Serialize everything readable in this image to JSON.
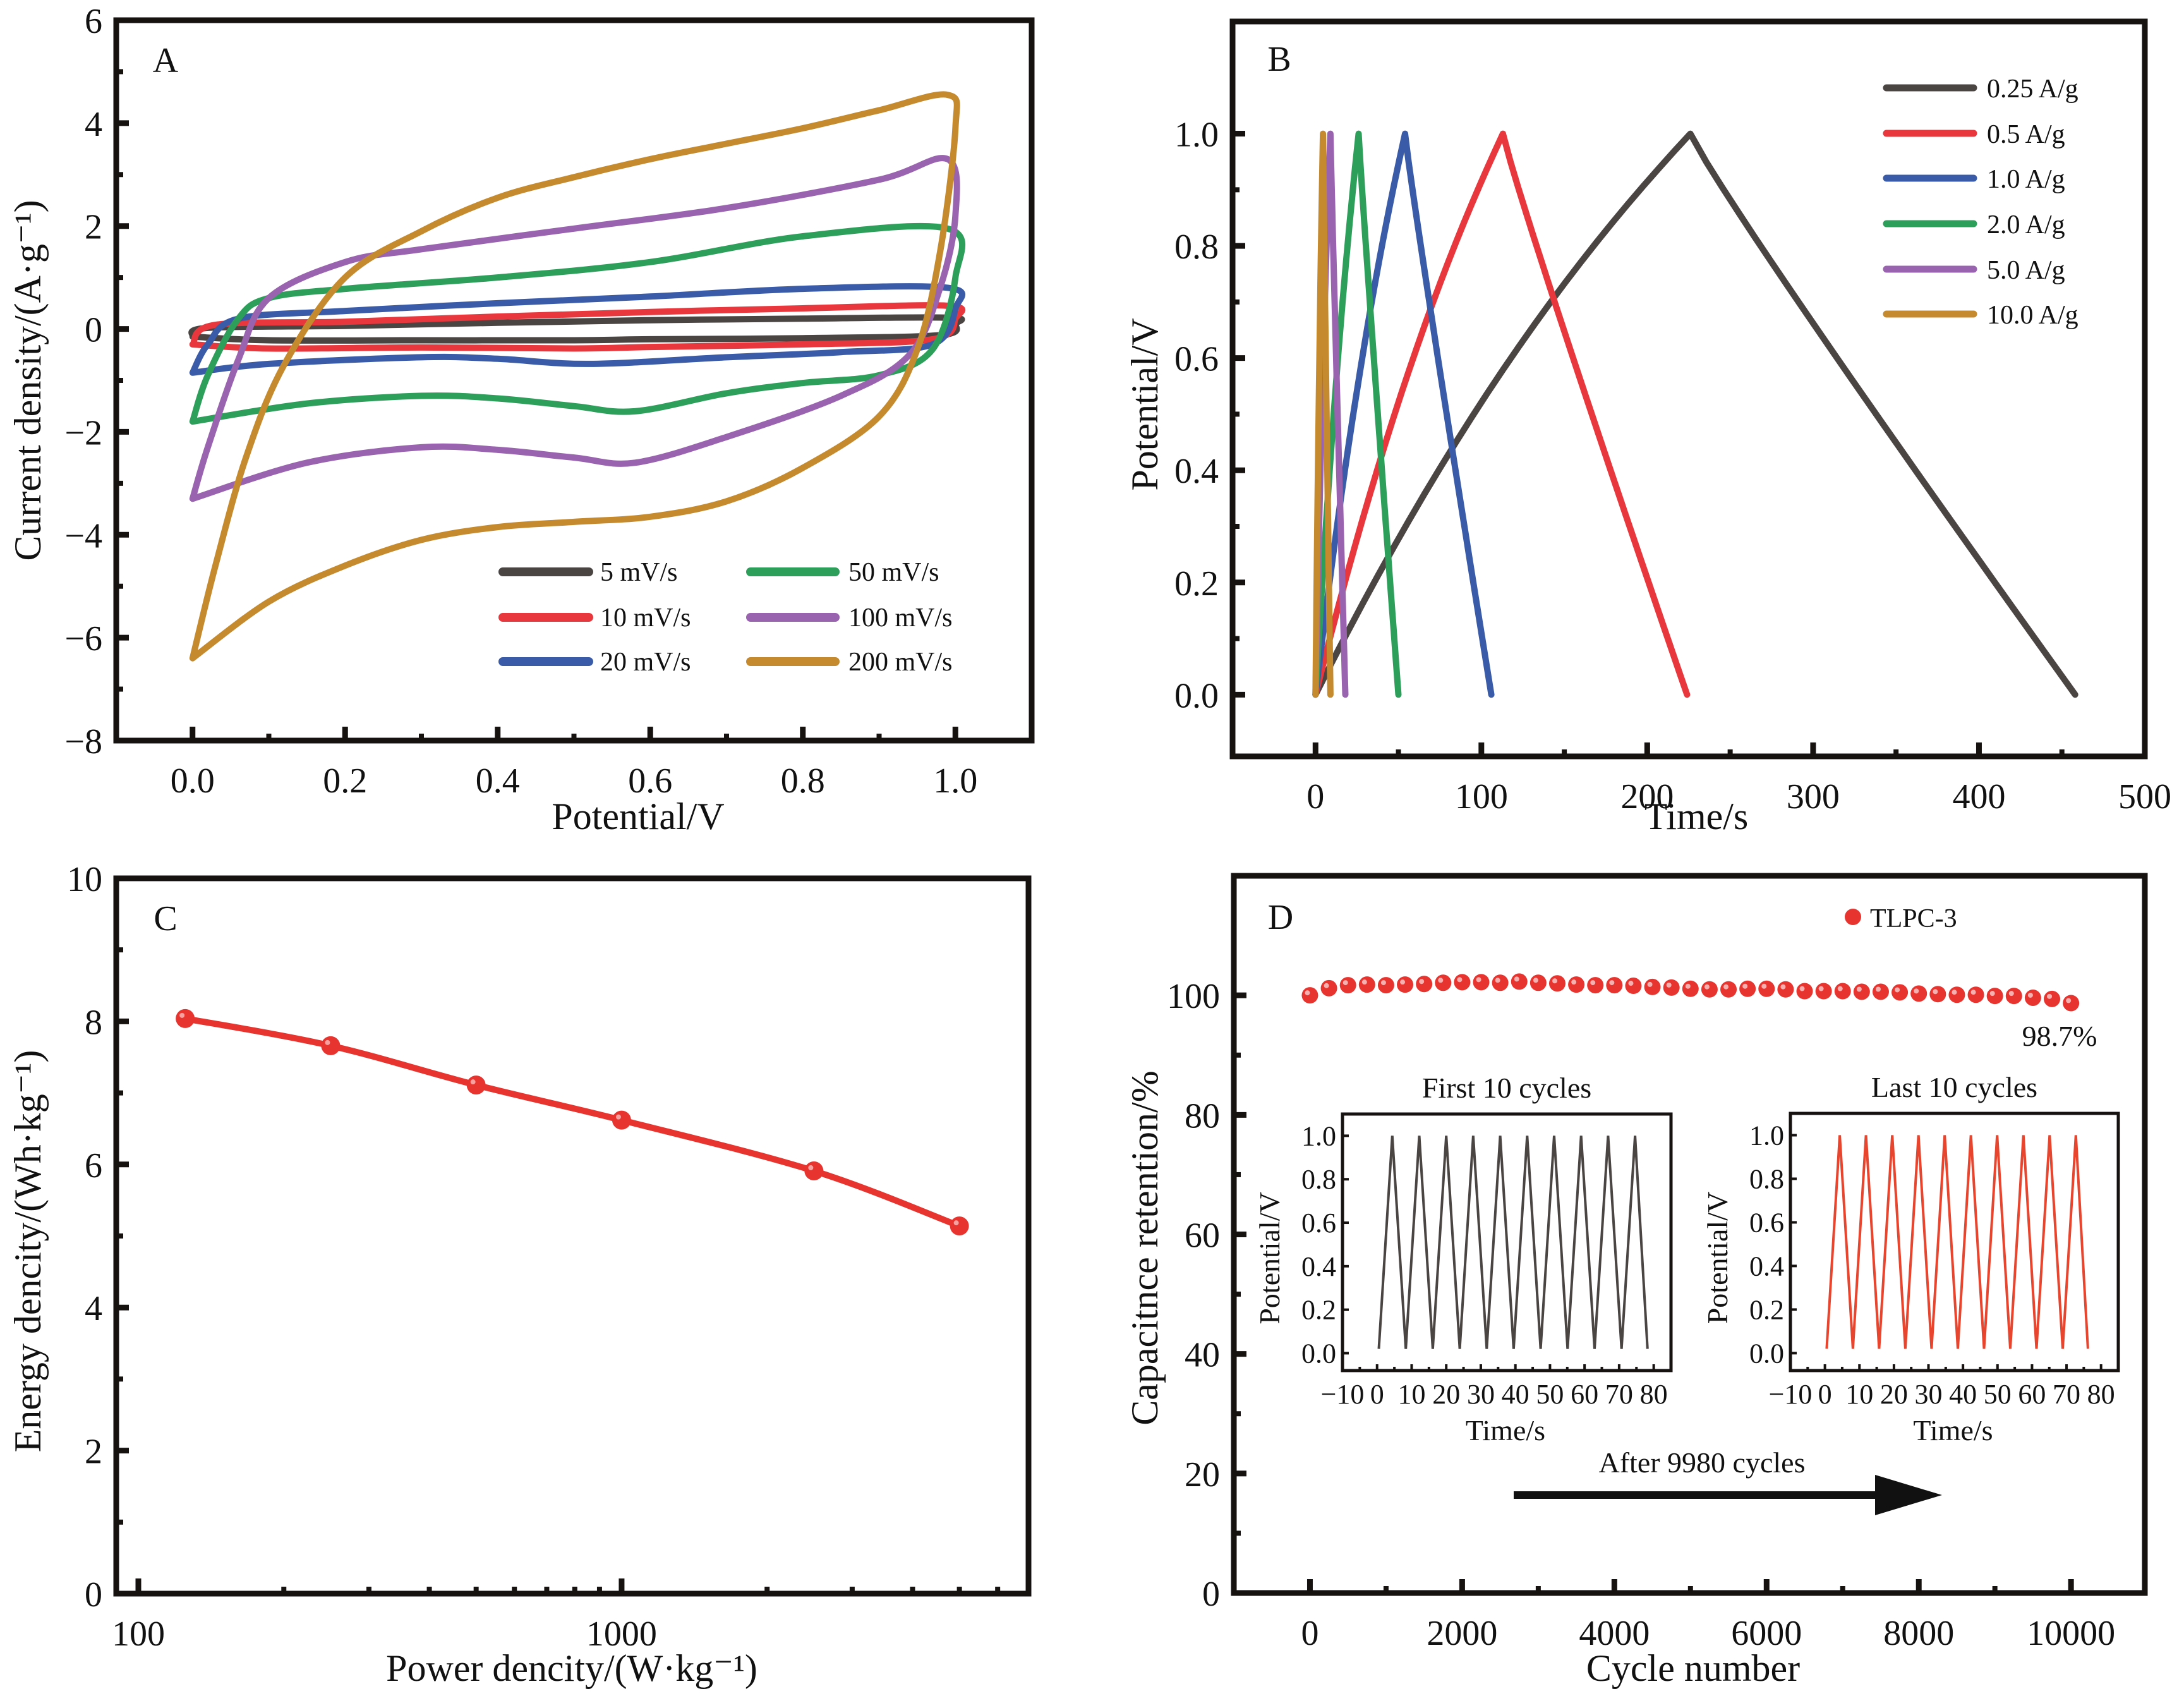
{
  "figure": {
    "panels": [
      "A",
      "B",
      "C",
      "D"
    ]
  },
  "chart_data": [
    {
      "id": "A",
      "type": "line",
      "panel_label": "A",
      "title": "",
      "xlabel": "Potential/V",
      "ylabel": "Current density/(A·g⁻¹)",
      "xlim": [
        -0.1,
        1.1
      ],
      "ylim": [
        -8,
        6
      ],
      "xticks": [
        0.0,
        0.2,
        0.4,
        0.6,
        0.8,
        1.0
      ],
      "xtick_labels": [
        "0.0",
        "0.2",
        "0.4",
        "0.6",
        "0.8",
        "1.0"
      ],
      "yticks": [
        -8,
        -6,
        -4,
        -2,
        0,
        2,
        4,
        6
      ],
      "ytick_labels": [
        "−8",
        "−6",
        "−4",
        "−2",
        "0",
        "2",
        "4",
        "6"
      ],
      "legend_position": "bottom-right",
      "series": [
        {
          "name": "5 mV/s",
          "color": "#4a4442",
          "anodic": [
            [
              0,
              -0.15
            ],
            [
              0.02,
              0.02
            ],
            [
              0.2,
              0.06
            ],
            [
              0.4,
              0.12
            ],
            [
              0.6,
              0.17
            ],
            [
              0.8,
              0.2
            ],
            [
              0.99,
              0.22
            ],
            [
              1.0,
              0.1
            ]
          ],
          "cathodic": [
            [
              1.0,
              0.1
            ],
            [
              0.98,
              -0.12
            ],
            [
              0.8,
              -0.18
            ],
            [
              0.6,
              -0.2
            ],
            [
              0.5,
              -0.22
            ],
            [
              0.3,
              -0.22
            ],
            [
              0.1,
              -0.22
            ],
            [
              0.0,
              -0.15
            ]
          ]
        },
        {
          "name": "10 mV/s",
          "color": "#e8383d",
          "anodic": [
            [
              0,
              -0.3
            ],
            [
              0.03,
              0.08
            ],
            [
              0.2,
              0.14
            ],
            [
              0.4,
              0.24
            ],
            [
              0.6,
              0.33
            ],
            [
              0.8,
              0.4
            ],
            [
              0.99,
              0.45
            ],
            [
              1.0,
              0.2
            ]
          ],
          "cathodic": [
            [
              1.0,
              0.2
            ],
            [
              0.97,
              -0.2
            ],
            [
              0.8,
              -0.3
            ],
            [
              0.6,
              -0.35
            ],
            [
              0.5,
              -0.38
            ],
            [
              0.3,
              -0.36
            ],
            [
              0.1,
              -0.38
            ],
            [
              0.0,
              -0.3
            ]
          ]
        },
        {
          "name": "20 mV/s",
          "color": "#3a5ba8",
          "anodic": [
            [
              0,
              -0.85
            ],
            [
              0.02,
              -0.3
            ],
            [
              0.06,
              0.2
            ],
            [
              0.2,
              0.35
            ],
            [
              0.4,
              0.5
            ],
            [
              0.6,
              0.63
            ],
            [
              0.8,
              0.78
            ],
            [
              0.99,
              0.8
            ],
            [
              1.0,
              0.4
            ]
          ],
          "cathodic": [
            [
              1.0,
              0.4
            ],
            [
              0.97,
              -0.3
            ],
            [
              0.85,
              -0.45
            ],
            [
              0.7,
              -0.55
            ],
            [
              0.52,
              -0.68
            ],
            [
              0.4,
              -0.58
            ],
            [
              0.3,
              -0.55
            ],
            [
              0.1,
              -0.68
            ],
            [
              0.0,
              -0.85
            ]
          ]
        },
        {
          "name": "50 mV/s",
          "color": "#2e9e5b",
          "anodic": [
            [
              0,
              -1.8
            ],
            [
              0.02,
              -0.9
            ],
            [
              0.06,
              0.2
            ],
            [
              0.1,
              0.6
            ],
            [
              0.2,
              0.78
            ],
            [
              0.4,
              1.0
            ],
            [
              0.6,
              1.3
            ],
            [
              0.8,
              1.8
            ],
            [
              0.99,
              1.95
            ],
            [
              1.0,
              1.0
            ]
          ],
          "cathodic": [
            [
              1.0,
              1.0
            ],
            [
              0.97,
              -0.4
            ],
            [
              0.9,
              -0.9
            ],
            [
              0.8,
              -1.05
            ],
            [
              0.7,
              -1.25
            ],
            [
              0.58,
              -1.6
            ],
            [
              0.5,
              -1.5
            ],
            [
              0.4,
              -1.35
            ],
            [
              0.3,
              -1.3
            ],
            [
              0.15,
              -1.45
            ],
            [
              0.0,
              -1.8
            ]
          ]
        },
        {
          "name": "100 mV/s",
          "color": "#9a63b0",
          "anodic": [
            [
              0,
              -3.3
            ],
            [
              0.02,
              -2.3
            ],
            [
              0.06,
              -0.6
            ],
            [
              0.1,
              0.6
            ],
            [
              0.2,
              1.3
            ],
            [
              0.3,
              1.55
            ],
            [
              0.5,
              1.95
            ],
            [
              0.7,
              2.35
            ],
            [
              0.9,
              2.9
            ],
            [
              0.99,
              3.3
            ],
            [
              1.0,
              2.2
            ]
          ],
          "cathodic": [
            [
              1.0,
              2.2
            ],
            [
              0.98,
              0.8
            ],
            [
              0.94,
              -0.5
            ],
            [
              0.85,
              -1.3
            ],
            [
              0.7,
              -2.1
            ],
            [
              0.58,
              -2.6
            ],
            [
              0.5,
              -2.5
            ],
            [
              0.4,
              -2.35
            ],
            [
              0.3,
              -2.3
            ],
            [
              0.15,
              -2.6
            ],
            [
              0.0,
              -3.3
            ]
          ]
        },
        {
          "name": "200 mV/s",
          "color": "#c58a2e",
          "anodic": [
            [
              0,
              -6.4
            ],
            [
              0.03,
              -4.6
            ],
            [
              0.07,
              -2.5
            ],
            [
              0.12,
              -0.7
            ],
            [
              0.2,
              1.0
            ],
            [
              0.3,
              1.9
            ],
            [
              0.4,
              2.55
            ],
            [
              0.5,
              2.95
            ],
            [
              0.6,
              3.3
            ],
            [
              0.7,
              3.6
            ],
            [
              0.8,
              3.9
            ],
            [
              0.9,
              4.25
            ],
            [
              0.99,
              4.55
            ],
            [
              1.0,
              3.9
            ]
          ],
          "cathodic": [
            [
              1.0,
              3.9
            ],
            [
              0.98,
              1.5
            ],
            [
              0.95,
              -0.4
            ],
            [
              0.9,
              -1.7
            ],
            [
              0.8,
              -2.7
            ],
            [
              0.7,
              -3.35
            ],
            [
              0.6,
              -3.65
            ],
            [
              0.5,
              -3.75
            ],
            [
              0.4,
              -3.85
            ],
            [
              0.3,
              -4.1
            ],
            [
              0.2,
              -4.6
            ],
            [
              0.1,
              -5.3
            ],
            [
              0.0,
              -6.4
            ]
          ]
        }
      ]
    },
    {
      "id": "B",
      "type": "line",
      "panel_label": "B",
      "title": "",
      "xlabel": "Time/s",
      "ylabel": "Potential/V",
      "xlim": [
        -50,
        500
      ],
      "ylim": [
        -0.11,
        1.2
      ],
      "xticks": [
        0,
        100,
        200,
        300,
        400,
        500
      ],
      "xtick_labels": [
        "0",
        "100",
        "200",
        "300",
        "400",
        "500"
      ],
      "yticks": [
        0.0,
        0.2,
        0.4,
        0.6,
        0.8,
        1.0
      ],
      "ytick_labels": [
        "0.0",
        "0.2",
        "0.4",
        "0.6",
        "0.8",
        "1.0"
      ],
      "legend_position": "top-right",
      "series": [
        {
          "name": "0.25 A/g",
          "color": "#4a4442",
          "charge_end_s": 226,
          "discharge_end_s": 458
        },
        {
          "name": "0.5 A/g",
          "color": "#e8383d",
          "charge_end_s": 113,
          "discharge_end_s": 224
        },
        {
          "name": "1.0 A/g",
          "color": "#3a5ba8",
          "charge_end_s": 54,
          "discharge_end_s": 106
        },
        {
          "name": "2.0 A/g",
          "color": "#2e9e5b",
          "charge_end_s": 26,
          "discharge_end_s": 50
        },
        {
          "name": "5.0 A/g",
          "color": "#9a63b0",
          "charge_end_s": 9,
          "discharge_end_s": 18
        },
        {
          "name": "10.0 A/g",
          "color": "#c58a2e",
          "charge_end_s": 4.5,
          "discharge_end_s": 9
        }
      ]
    },
    {
      "id": "C",
      "type": "line",
      "panel_label": "C",
      "title": "",
      "xlabel": "Power dencity/(W·kg⁻¹)",
      "ylabel": "Energy dencity/(Wh·kg⁻¹)",
      "xscale": "log",
      "xlim": [
        90,
        6950
      ],
      "ylim": [
        0,
        10
      ],
      "xticks": [
        100,
        1000
      ],
      "xtick_labels": [
        "100",
        "1000"
      ],
      "yticks": [
        0,
        2,
        4,
        6,
        8,
        10
      ],
      "ytick_labels": [
        "0",
        "2",
        "4",
        "6",
        "8",
        "10"
      ],
      "color": "#e8342f",
      "x": [
        125,
        250,
        500,
        1000,
        2500,
        5000
      ],
      "y": [
        8.04,
        7.66,
        7.11,
        6.62,
        5.91,
        5.14
      ]
    },
    {
      "id": "D",
      "type": "scatter",
      "panel_label": "D",
      "title": "",
      "xlabel": "Cycle number",
      "ylabel": "Capacitnce retention/%",
      "xlim": [
        -1000,
        10970
      ],
      "ylim": [
        0,
        120
      ],
      "xticks": [
        0,
        2000,
        4000,
        6000,
        8000,
        10000
      ],
      "xtick_labels": [
        "0",
        "2000",
        "4000",
        "6000",
        "8000",
        "10000"
      ],
      "yticks": [
        0,
        20,
        40,
        60,
        80,
        100
      ],
      "ytick_labels": [
        "0",
        "20",
        "40",
        "60",
        "80",
        "100"
      ],
      "legend_position": "top-right",
      "series": [
        {
          "name": "TLPC-3",
          "color": "#e8342f",
          "x_step": 250,
          "y": [
            100.0,
            101.2,
            101.7,
            101.8,
            101.7,
            101.8,
            101.9,
            102.1,
            102.2,
            102.2,
            102.1,
            102.3,
            102.1,
            102.0,
            101.8,
            101.7,
            101.7,
            101.6,
            101.4,
            101.3,
            101.1,
            101.0,
            101.0,
            101.1,
            101.1,
            101.0,
            100.7,
            100.7,
            100.7,
            100.6,
            100.6,
            100.5,
            100.3,
            100.2,
            100.1,
            100.1,
            99.9,
            99.9,
            99.6,
            99.4,
            98.7
          ]
        }
      ],
      "annotations": {
        "final_retention": "98.7%",
        "arrow_text": "After 9980 cycles"
      },
      "insets": [
        {
          "title": "First 10 cycles",
          "xlabel": "Time/s",
          "ylabel": "Potential/V",
          "color": "#4a4442",
          "xlim": [
            -10,
            85
          ],
          "ylim": [
            -0.08,
            1.1
          ],
          "xticks": [
            -10,
            0,
            10,
            20,
            30,
            40,
            50,
            60,
            70,
            80
          ],
          "xtick_labels": [
            "−10",
            "0",
            "10",
            "20",
            "30",
            "40",
            "50",
            "60",
            "70",
            "80"
          ],
          "yticks": [
            0.0,
            0.2,
            0.4,
            0.6,
            0.8,
            1.0
          ],
          "ytick_labels": [
            "0.0",
            "0.2",
            "0.4",
            "0.6",
            "0.8",
            "1.0"
          ],
          "cycles": 10,
          "start_s": 0.5,
          "period_s": 7.8,
          "vmin": 0.0,
          "vmax": 1.0
        },
        {
          "title": "Last 10 cycles",
          "xlabel": "Time/s",
          "ylabel": "Potential/V",
          "color": "#e8452f",
          "xlim": [
            -10,
            85
          ],
          "ylim": [
            -0.08,
            1.1
          ],
          "xticks": [
            -10,
            0,
            10,
            20,
            30,
            40,
            50,
            60,
            70,
            80
          ],
          "xtick_labels": [
            "−10",
            "0",
            "10",
            "20",
            "30",
            "40",
            "50",
            "60",
            "70",
            "80"
          ],
          "yticks": [
            0.0,
            0.2,
            0.4,
            0.6,
            0.8,
            1.0
          ],
          "ytick_labels": [
            "0.0",
            "0.2",
            "0.4",
            "0.6",
            "0.8",
            "1.0"
          ],
          "cycles": 10,
          "start_s": 0.5,
          "period_s": 7.6,
          "vmin": 0.0,
          "vmax": 1.0
        }
      ]
    }
  ]
}
